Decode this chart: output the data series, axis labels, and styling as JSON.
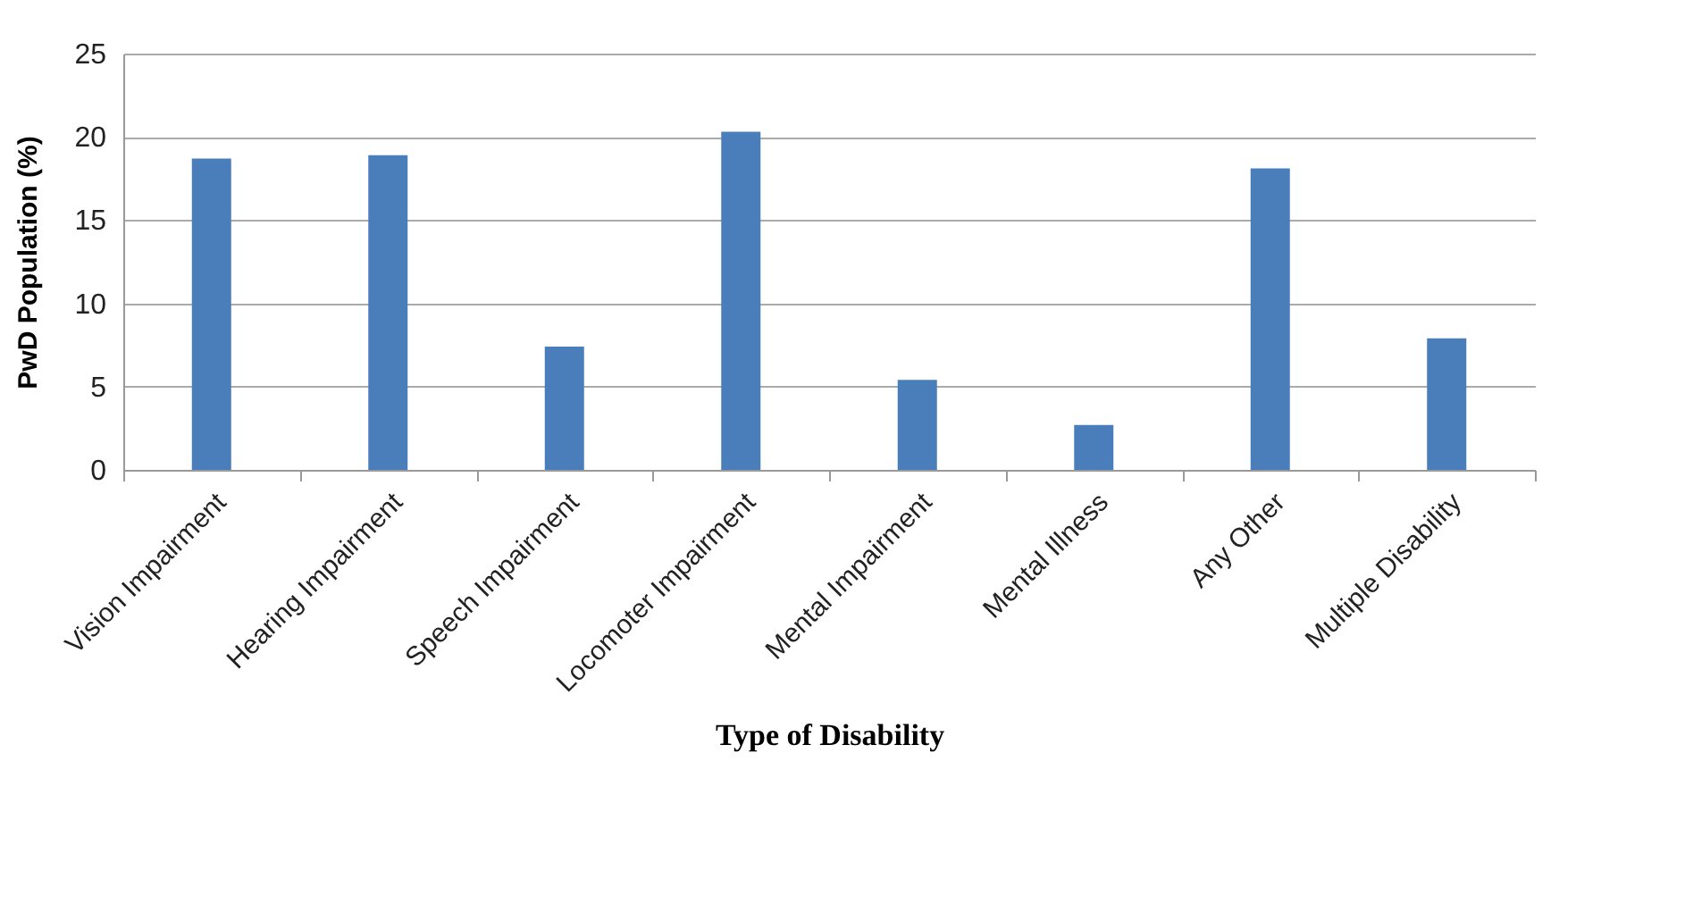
{
  "chart_data": {
    "type": "bar",
    "xlabel": "Type of Disability",
    "ylabel": "PwD Population (%)",
    "categories": [
      "Vision Impairment",
      "Hearing Impairment",
      "Speech Impairment",
      "Locomoter Impairment",
      "Mental Impairment",
      "Mental Illness",
      "Any Other",
      "Multiple Disability"
    ],
    "values": [
      18.7,
      18.9,
      7.4,
      20.3,
      5.4,
      2.7,
      18.1,
      7.9
    ],
    "color": "#4a7ebb",
    "ylim": [
      0,
      25
    ],
    "yticks": [
      0,
      5,
      10,
      15,
      20,
      25
    ],
    "grid": "y"
  }
}
